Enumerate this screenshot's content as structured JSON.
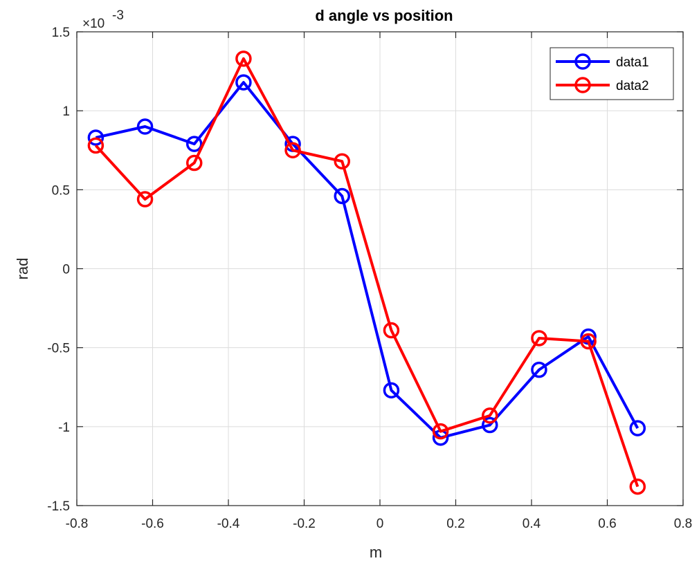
{
  "chart_data": {
    "type": "line",
    "title": "d angle vs position",
    "xlabel": "m",
    "ylabel": "rad",
    "y_exponent": "×10",
    "y_exponent_power": "-3",
    "xlim": [
      -0.8,
      0.8
    ],
    "ylim": [
      -1.5,
      1.5
    ],
    "xticks": [
      -0.8,
      -0.6,
      -0.4,
      -0.2,
      0,
      0.2,
      0.4,
      0.6,
      0.8
    ],
    "xtick_labels": [
      "-0.8",
      "-0.6",
      "-0.4",
      "-0.2",
      "0",
      "0.2",
      "0.4",
      "0.6",
      "0.8"
    ],
    "yticks": [
      -1.5,
      -1,
      -0.5,
      0,
      0.5,
      1,
      1.5
    ],
    "ytick_labels": [
      "-1.5",
      "-1",
      "-0.5",
      "0",
      "0.5",
      "1",
      "1.5"
    ],
    "grid": true,
    "legend_position": "top-right",
    "x": [
      -0.75,
      -0.62,
      -0.49,
      -0.36,
      -0.23,
      -0.1,
      0.03,
      0.16,
      0.29,
      0.42,
      0.55,
      0.68
    ],
    "series": [
      {
        "name": "data1",
        "color": "#0000ff",
        "marker": "circle",
        "values": [
          0.83,
          0.9,
          0.79,
          1.18,
          0.79,
          0.46,
          -0.77,
          -1.07,
          -0.99,
          -0.64,
          -0.43,
          -1.01
        ]
      },
      {
        "name": "data2",
        "color": "#ff0000",
        "marker": "circle",
        "values": [
          0.78,
          0.44,
          0.67,
          1.33,
          0.75,
          0.68,
          -0.39,
          -1.03,
          -0.93,
          -0.44,
          -0.46,
          -1.38
        ]
      }
    ]
  }
}
